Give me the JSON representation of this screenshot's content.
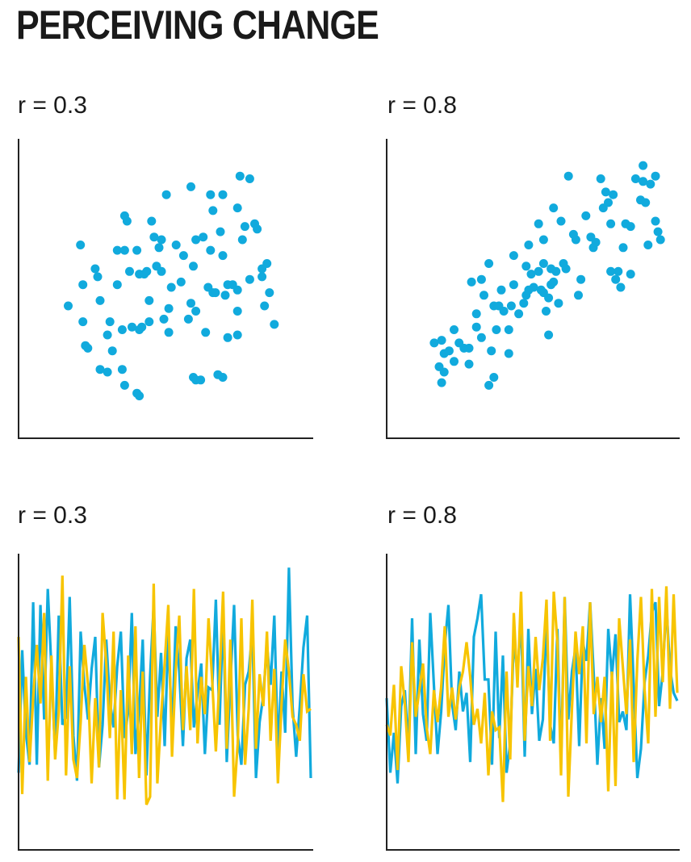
{
  "title": "PERCEIVING CHANGE",
  "colors": {
    "series_a": "#11aadd",
    "series_b": "#f7c400",
    "axis": "#222222",
    "text": "#1a1a1a"
  },
  "chart_data": [
    {
      "type": "scatter",
      "title": "r = 0.3",
      "xlim": [
        0,
        100
      ],
      "ylim": [
        0,
        100
      ],
      "points": [
        [
          12,
          43
        ],
        [
          17,
          66
        ],
        [
          18,
          51
        ],
        [
          19,
          28
        ],
        [
          18,
          37
        ],
        [
          20,
          27
        ],
        [
          23,
          57
        ],
        [
          24,
          54
        ],
        [
          25,
          45
        ],
        [
          25,
          19
        ],
        [
          28,
          32
        ],
        [
          28,
          18
        ],
        [
          29,
          37
        ],
        [
          30,
          26
        ],
        [
          32,
          64
        ],
        [
          32,
          51
        ],
        [
          34,
          34
        ],
        [
          34,
          19
        ],
        [
          35,
          77
        ],
        [
          35,
          13
        ],
        [
          35,
          64
        ],
        [
          36,
          75
        ],
        [
          37,
          56
        ],
        [
          38,
          35
        ],
        [
          40,
          64
        ],
        [
          41,
          55
        ],
        [
          41,
          34
        ],
        [
          41,
          9
        ],
        [
          40,
          10
        ],
        [
          42,
          35
        ],
        [
          43,
          55
        ],
        [
          44,
          56
        ],
        [
          45,
          45
        ],
        [
          45,
          37
        ],
        [
          46,
          75
        ],
        [
          47,
          69
        ],
        [
          48,
          58
        ],
        [
          49,
          65
        ],
        [
          50,
          56
        ],
        [
          50,
          68
        ],
        [
          52,
          85
        ],
        [
          51,
          38
        ],
        [
          53,
          42
        ],
        [
          53,
          33
        ],
        [
          54,
          50
        ],
        [
          56,
          66
        ],
        [
          58,
          52
        ],
        [
          59,
          62
        ],
        [
          62,
          88
        ],
        [
          61,
          38
        ],
        [
          62,
          44
        ],
        [
          63,
          58
        ],
        [
          64,
          68
        ],
        [
          64,
          41
        ],
        [
          63,
          16
        ],
        [
          64,
          15
        ],
        [
          66,
          15
        ],
        [
          67,
          69
        ],
        [
          68,
          33
        ],
        [
          69,
          50
        ],
        [
          70,
          64
        ],
        [
          70,
          85
        ],
        [
          71,
          79
        ],
        [
          71,
          48
        ],
        [
          72,
          48
        ],
        [
          73,
          17
        ],
        [
          74,
          71
        ],
        [
          75,
          62
        ],
        [
          75,
          85
        ],
        [
          75,
          16
        ],
        [
          76,
          47
        ],
        [
          77,
          51
        ],
        [
          77,
          31
        ],
        [
          79,
          51
        ],
        [
          81,
          32
        ],
        [
          81,
          41
        ],
        [
          81,
          49
        ],
        [
          81,
          80
        ],
        [
          82,
          92
        ],
        [
          83,
          68
        ],
        [
          84,
          73
        ],
        [
          86,
          91
        ],
        [
          86,
          53
        ],
        [
          88,
          74
        ],
        [
          89,
          72
        ],
        [
          91,
          54
        ],
        [
          91,
          57
        ],
        [
          92,
          43
        ],
        [
          93,
          59
        ],
        [
          94,
          48
        ],
        [
          96,
          36
        ]
      ]
    },
    {
      "type": "scatter",
      "title": "r = 0.8",
      "xlim": [
        0,
        100
      ],
      "ylim": [
        0,
        100
      ],
      "points": [
        [
          11,
          29
        ],
        [
          13,
          20
        ],
        [
          14,
          30
        ],
        [
          15,
          18
        ],
        [
          14,
          14
        ],
        [
          15,
          25
        ],
        [
          17,
          26
        ],
        [
          19,
          34
        ],
        [
          19,
          22
        ],
        [
          21,
          29
        ],
        [
          23,
          27
        ],
        [
          25,
          21
        ],
        [
          25,
          27
        ],
        [
          26,
          52
        ],
        [
          28,
          35
        ],
        [
          28,
          40
        ],
        [
          30,
          31
        ],
        [
          30,
          53
        ],
        [
          31,
          47
        ],
        [
          33,
          59
        ],
        [
          33,
          13
        ],
        [
          35,
          16
        ],
        [
          34,
          26
        ],
        [
          35,
          43
        ],
        [
          36,
          34
        ],
        [
          37,
          43
        ],
        [
          38,
          49
        ],
        [
          39,
          41
        ],
        [
          41,
          25
        ],
        [
          41,
          34
        ],
        [
          42,
          43
        ],
        [
          43,
          62
        ],
        [
          43,
          51
        ],
        [
          45,
          40
        ],
        [
          47,
          44
        ],
        [
          48,
          58
        ],
        [
          48,
          47
        ],
        [
          49,
          49
        ],
        [
          49,
          66
        ],
        [
          50,
          55
        ],
        [
          51,
          50
        ],
        [
          53,
          74
        ],
        [
          53,
          56
        ],
        [
          54,
          49
        ],
        [
          55,
          48
        ],
        [
          55,
          59
        ],
        [
          55,
          68
        ],
        [
          56,
          41
        ],
        [
          57,
          46
        ],
        [
          57,
          32
        ],
        [
          58,
          51
        ],
        [
          58,
          57
        ],
        [
          59,
          52
        ],
        [
          59,
          80
        ],
        [
          60,
          56
        ],
        [
          62,
          75
        ],
        [
          61,
          44
        ],
        [
          63,
          59
        ],
        [
          64,
          57
        ],
        [
          65,
          92
        ],
        [
          67,
          70
        ],
        [
          68,
          68
        ],
        [
          69,
          47
        ],
        [
          70,
          53
        ],
        [
          72,
          77
        ],
        [
          74,
          69
        ],
        [
          75,
          65
        ],
        [
          76,
          67
        ],
        [
          78,
          91
        ],
        [
          79,
          80
        ],
        [
          80,
          86
        ],
        [
          81,
          82
        ],
        [
          82,
          74
        ],
        [
          83,
          85
        ],
        [
          82,
          56
        ],
        [
          84,
          53
        ],
        [
          85,
          56
        ],
        [
          86,
          50
        ],
        [
          87,
          65
        ],
        [
          88,
          74
        ],
        [
          90,
          73
        ],
        [
          90,
          55
        ],
        [
          92,
          91
        ],
        [
          94,
          83
        ],
        [
          95,
          96
        ],
        [
          95,
          90
        ],
        [
          96,
          82
        ],
        [
          97,
          66
        ],
        [
          98,
          89
        ],
        [
          100,
          92
        ],
        [
          100,
          75
        ],
        [
          101,
          71
        ],
        [
          102,
          68
        ]
      ]
    },
    {
      "type": "line",
      "title": "r = 0.3",
      "xlim": [
        0,
        80
      ],
      "ylim": [
        0,
        100
      ],
      "series": [
        {
          "values": [
            22,
            68,
            37,
            25,
            86,
            25,
            85,
            42,
            91,
            61,
            29,
            81,
            40,
            43,
            88,
            36,
            19,
            75,
            55,
            42,
            61,
            73,
            24,
            40,
            72,
            49,
            39,
            62,
            75,
            35,
            45,
            82,
            29,
            45,
            72,
            21,
            58,
            85,
            43,
            67,
            32,
            75,
            36,
            77,
            60,
            32,
            65,
            72,
            39,
            52,
            63,
            29,
            54,
            53,
            87,
            40,
            82,
            26,
            56,
            85,
            36,
            25,
            55,
            60,
            75,
            20,
            41,
            51,
            70,
            55,
            81,
            30,
            60,
            37,
            99,
            47,
            28,
            47,
            69,
            81,
            20
          ]
        },
        {
          "values": [
            73,
            14,
            58,
            26,
            50,
            70,
            48,
            82,
            19,
            66,
            27,
            45,
            96,
            21,
            62,
            27,
            20,
            41,
            70,
            55,
            18,
            50,
            24,
            82,
            63,
            35,
            75,
            12,
            53,
            12,
            66,
            29,
            77,
            20,
            60,
            10,
            13,
            93,
            18,
            43,
            63,
            85,
            28,
            60,
            81,
            38,
            62,
            38,
            91,
            33,
            58,
            44,
            80,
            57,
            30,
            57,
            90,
            31,
            72,
            13,
            33,
            80,
            25,
            46,
            87,
            31,
            59,
            47,
            75,
            34,
            61,
            18,
            48,
            72,
            60,
            43,
            40,
            34,
            59,
            45,
            46
          ]
        }
      ]
    },
    {
      "type": "line",
      "title": "r = 0.8",
      "xlim": [
        0,
        80
      ],
      "ylim": [
        0,
        100
      ],
      "series": [
        {
          "values": [
            50,
            22,
            37,
            18,
            47,
            53,
            31,
            80,
            29,
            72,
            44,
            34,
            82,
            55,
            29,
            45,
            70,
            85,
            48,
            38,
            60,
            45,
            52,
            26,
            73,
            80,
            89,
            57,
            57,
            25,
            75,
            35,
            66,
            22,
            33,
            72,
            59,
            80,
            28,
            76,
            44,
            61,
            34,
            42,
            80,
            40,
            33,
            76,
            25,
            88,
            42,
            60,
            69,
            32,
            71,
            64,
            86,
            59,
            25,
            50,
            31,
            76,
            58,
            74,
            41,
            45,
            38,
            89,
            55,
            20,
            31,
            56,
            66,
            82,
            86,
            47,
            60,
            85,
            61,
            52,
            49
          ]
        },
        {
          "values": [
            40,
            36,
            55,
            23,
            62,
            48,
            26,
            71,
            43,
            53,
            63,
            39,
            29,
            53,
            41,
            54,
            77,
            43,
            54,
            42,
            54,
            60,
            71,
            58,
            40,
            46,
            33,
            52,
            21,
            45,
            38,
            39,
            11,
            60,
            27,
            82,
            54,
            90,
            34,
            62,
            47,
            73,
            53,
            65,
            87,
            34,
            90,
            71,
            21,
            88,
            13,
            46,
            75,
            59,
            77,
            33,
            86,
            44,
            58,
            41,
            58,
            15,
            60,
            17,
            80,
            62,
            44,
            72,
            26,
            64,
            88,
            53,
            33,
            91,
            43,
            88,
            56,
            92,
            46,
            89,
            52
          ]
        }
      ]
    }
  ]
}
